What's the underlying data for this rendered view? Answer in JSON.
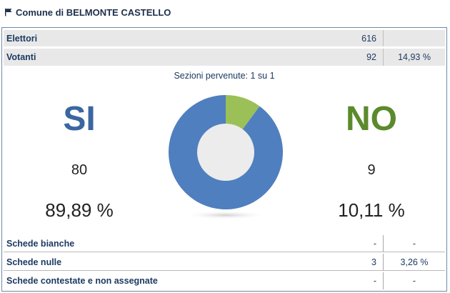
{
  "header": {
    "title": "Comune di BELMONTE CASTELLO",
    "icon": "flag-icon"
  },
  "summary": {
    "elettori": {
      "label": "Elettori",
      "value": "616",
      "pct": ""
    },
    "votanti": {
      "label": "Votanti",
      "value": "92",
      "pct": "14,93 %"
    }
  },
  "sections_text": "Sezioni pervenute: 1 su 1",
  "results": {
    "si": {
      "label": "SI",
      "count": "80",
      "percent": "89,89 %",
      "color": "#4f7fbf"
    },
    "no": {
      "label": "NO",
      "count": "9",
      "percent": "10,11 %",
      "color": "#9bc057"
    }
  },
  "chart_data": {
    "type": "pie",
    "categories": [
      "SI",
      "NO"
    ],
    "values": [
      89.89,
      10.11
    ],
    "title": "",
    "colors": [
      "#4f7fbf",
      "#9bc057"
    ],
    "donut": true
  },
  "schede": [
    {
      "label": "Schede bianche",
      "value": "-",
      "pct": "-"
    },
    {
      "label": "Schede nulle",
      "value": "3",
      "pct": "3,26 %"
    },
    {
      "label": "Schede contestate e non assegnate",
      "value": "-",
      "pct": "-"
    }
  ]
}
